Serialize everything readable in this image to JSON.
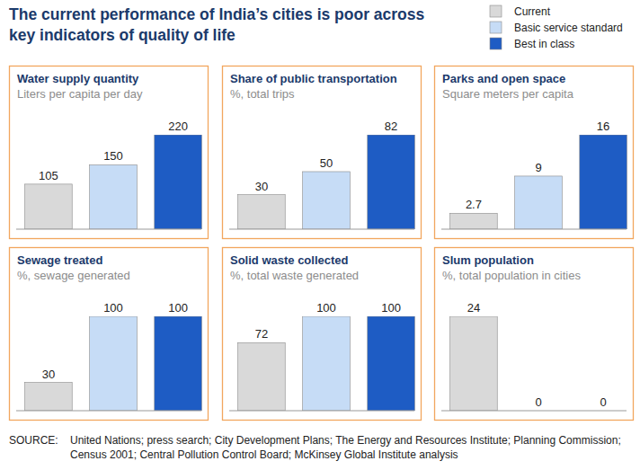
{
  "title": [
    "The current performance of India’s cities is poor across",
    "key indicators of quality of life"
  ],
  "legend_items": [
    {
      "name": "Current",
      "color": "#d9d9d9"
    },
    {
      "name": "Basic service standard",
      "color": "#c6dcf6"
    },
    {
      "name": "Best in class",
      "color": "#1e5cc4"
    }
  ],
  "source_label": "SOURCE:",
  "source_lines": [
    "United Nations; press search; City Development Plans; The Energy and Resources Institute; Planning Commission;",
    "Census 2001; Central Pollution Control Board; McKinsey Global Institute analysis"
  ],
  "chart_data": [
    {
      "type": "bar",
      "title": "Water supply quantity",
      "subtitle": "Liters per capita per day",
      "categories": [
        null,
        null,
        null
      ],
      "values": [
        105,
        150,
        220
      ],
      "colors": [
        "#d9d9d9",
        "#c6dcf6",
        "#1e5cc4"
      ],
      "ylim": [
        0,
        220
      ],
      "data_labels": true,
      "tick_labels": false
    },
    {
      "type": "bar",
      "title": "Share of public transportation",
      "subtitle": "%, total trips",
      "categories": [
        null,
        null,
        null
      ],
      "values": [
        30,
        50,
        82
      ],
      "colors": [
        "#d9d9d9",
        "#c6dcf6",
        "#1e5cc4"
      ],
      "ylim": [
        0,
        82
      ],
      "data_labels": true,
      "tick_labels": false
    },
    {
      "type": "bar",
      "title": "Parks and open space",
      "subtitle": "Square meters per capita",
      "categories": [
        null,
        null,
        null
      ],
      "values": [
        2.7,
        9,
        16
      ],
      "colors": [
        "#d9d9d9",
        "#c6dcf6",
        "#1e5cc4"
      ],
      "ylim": [
        0,
        16
      ],
      "data_labels": true,
      "tick_labels": false
    },
    {
      "type": "bar",
      "title": "Sewage treated",
      "subtitle": "%, sewage generated",
      "categories": [
        null,
        null,
        null
      ],
      "values": [
        30,
        100,
        100
      ],
      "colors": [
        "#d9d9d9",
        "#c6dcf6",
        "#1e5cc4"
      ],
      "ylim": [
        0,
        100
      ],
      "data_labels": true,
      "tick_labels": false
    },
    {
      "type": "bar",
      "title": "Solid waste collected",
      "subtitle": "%, total waste generated",
      "categories": [
        null,
        null,
        null
      ],
      "values": [
        72,
        100,
        100
      ],
      "colors": [
        "#d9d9d9",
        "#c6dcf6",
        "#1e5cc4"
      ],
      "ylim": [
        0,
        100
      ],
      "data_labels": true,
      "tick_labels": false
    },
    {
      "type": "bar",
      "title": "Slum population",
      "subtitle": "%, total population in cities",
      "categories": [
        null,
        null,
        null
      ],
      "values": [
        24,
        0,
        0
      ],
      "colors": [
        "#d9d9d9",
        "#c6dcf6",
        "#1e5cc4"
      ],
      "ylim": [
        0,
        24
      ],
      "data_labels": true,
      "tick_labels": false
    }
  ]
}
